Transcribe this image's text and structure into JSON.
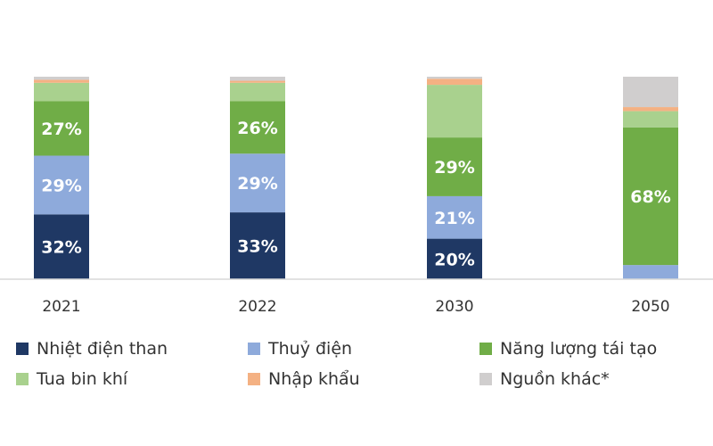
{
  "chart_data": {
    "type": "bar",
    "stacked": true,
    "categories": [
      "2021",
      "2022",
      "2030",
      "2050"
    ],
    "ylim": [
      0,
      100
    ],
    "series": [
      {
        "name": "Nhiệt điện than",
        "color": "#1f3864",
        "values": [
          32,
          33,
          20,
          0
        ],
        "labels": [
          "32%",
          "33%",
          "20%",
          ""
        ]
      },
      {
        "name": "Thuỷ điện",
        "color": "#8eaadb",
        "values": [
          29,
          29,
          21,
          7
        ],
        "labels": [
          "29%",
          "29%",
          "21%",
          ""
        ]
      },
      {
        "name": "Năng lượng tái tạo",
        "color": "#70ad47",
        "values": [
          27,
          26,
          29,
          68
        ],
        "labels": [
          "27%",
          "26%",
          "29%",
          "68%"
        ]
      },
      {
        "name": "Tua bin khí",
        "color": "#a9d18e",
        "values": [
          9,
          9,
          26,
          8
        ],
        "labels": [
          "",
          "",
          "",
          ""
        ]
      },
      {
        "name": "Nhập khẩu",
        "color": "#f4b183",
        "values": [
          1.5,
          1,
          3,
          2
        ],
        "labels": [
          "",
          "",
          "",
          ""
        ]
      },
      {
        "name": "Nguồn khác*",
        "color": "#d0cece",
        "values": [
          1.5,
          2,
          1,
          15
        ],
        "labels": [
          "",
          "",
          "",
          ""
        ]
      }
    ],
    "grid": false,
    "legend_position": "bottom"
  }
}
